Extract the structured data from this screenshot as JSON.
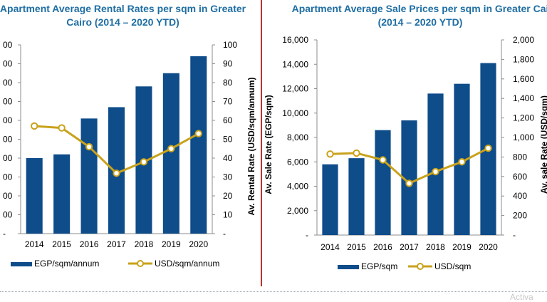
{
  "charts": {
    "rental": {
      "title_line1": "Apartment Average Rental Rates per sqm  in Greater",
      "title_line2": "Cairo (2014 – 2020 YTD)",
      "left_ticks": [
        "-",
        "00",
        "00",
        "00",
        "00",
        "00",
        "00",
        "00",
        "00",
        "00",
        "00"
      ],
      "right_ticks": [
        "-",
        "10",
        "20",
        "30",
        "40",
        "50",
        "60",
        "70",
        "80",
        "90",
        "100"
      ],
      "right_axis_title": "Av. Rental Rate (USD/sqm/annum)",
      "legend_bar": "EGP/sqm/annum",
      "legend_line": "USD/sqm/annum"
    },
    "sale": {
      "title_line1": "Apartment Average Sale Prices per sqm  in Greater Cai",
      "title_line2": "(2014 – 2020 YTD)",
      "left_ticks": [
        "-",
        "2,000",
        "4,000",
        "6,000",
        "8,000",
        "10,000",
        "12,000",
        "14,000",
        "16,000"
      ],
      "right_ticks": [
        "-",
        "200",
        "400",
        "600",
        "800",
        "1,000",
        "1,200",
        "1,400",
        "1,600",
        "1,800",
        "2,000"
      ],
      "left_axis_title": "Av. Sale Rate (EGP/sqm)",
      "right_axis_title": "Av. sale Rate (USD/sqm)",
      "legend_bar": "EGP/sqm",
      "legend_line": "USD/sqm"
    }
  },
  "watermark": "Activa",
  "chart_data": [
    {
      "type": "bar",
      "title": "Apartment Average Rental Rates per sqm  in Greater Cairo (2014 – 2020 YTD)",
      "categories": [
        "2014",
        "2015",
        "2016",
        "2017",
        "2018",
        "2019",
        "2020"
      ],
      "series": [
        {
          "name": "EGP/sqm/annum",
          "type": "bar",
          "axis": "left",
          "values": [
            0.4,
            0.42,
            0.61,
            0.67,
            0.78,
            0.85,
            0.94
          ]
        },
        {
          "name": "USD/sqm/annum",
          "type": "line",
          "axis": "right",
          "values": [
            57,
            56,
            46,
            32,
            38,
            45,
            53
          ]
        }
      ],
      "ylabel_right": "Av. Rental Rate (USD/sqm/annum)",
      "ylim_right": [
        0,
        100
      ],
      "left_axis_note": "left axis labels cut off; bar values are fractions of the left axis height",
      "grid": false,
      "legend": "bottom"
    },
    {
      "type": "bar",
      "title": "Apartment Average Sale Prices per sqm  in Greater Cai (2014 – 2020 YTD)",
      "categories": [
        "2014",
        "2015",
        "2016",
        "2017",
        "2018",
        "2019",
        "2020"
      ],
      "series": [
        {
          "name": "EGP/sqm",
          "type": "bar",
          "axis": "left",
          "values": [
            5800,
            6300,
            8600,
            9400,
            11600,
            12400,
            14100
          ]
        },
        {
          "name": "USD/sqm",
          "type": "line",
          "axis": "right",
          "values": [
            830,
            840,
            770,
            530,
            650,
            750,
            890
          ]
        }
      ],
      "ylabel": "Av. Sale Rate (EGP/sqm)",
      "ylim": [
        0,
        16000
      ],
      "ylabel_right": "Av. sale Rate (USD/sqm)",
      "ylim_right": [
        0,
        2000
      ],
      "grid": false,
      "legend": "bottom"
    }
  ],
  "colors": {
    "bar": "#0e4c8a",
    "line": "#c9a21b",
    "title": "#1f6ea3",
    "divider": "#b8332e"
  }
}
